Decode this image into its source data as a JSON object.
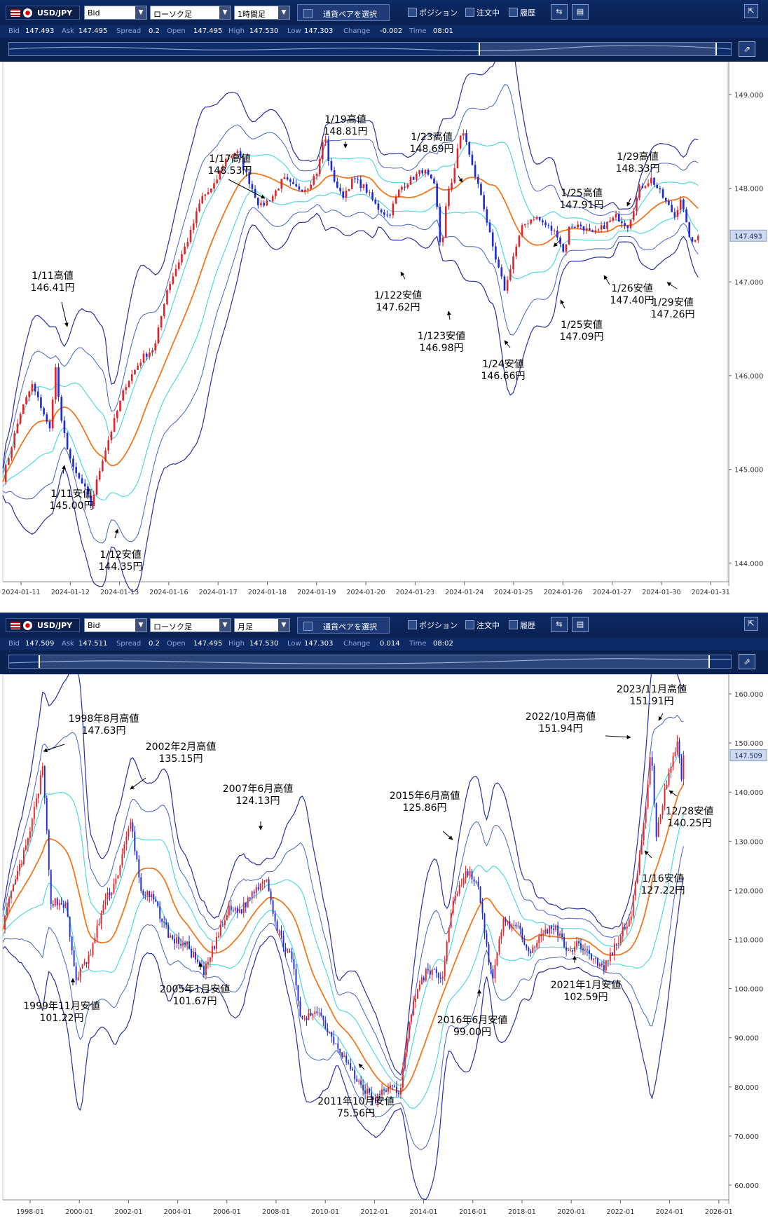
{
  "panels": [
    {
      "id": "hourly",
      "toolbar": {
        "pair": "USD/JPY",
        "price_type": "Bid",
        "chart_type": "ローソク足",
        "timeframe": "1時間足",
        "select_pair": "通貨ペアを選択",
        "position_label": "ポジション",
        "order_label": "注文中",
        "history_label": "履歴"
      },
      "quote": {
        "bid_label": "Bid",
        "bid": "147.493",
        "ask_label": "Ask",
        "ask": "147.495",
        "spread_label": "Spread",
        "spread": "0.2",
        "open_label": "Open",
        "open": "147.495",
        "high_label": "High",
        "high": "147.530",
        "low_label": "Low",
        "low": "147.303",
        "change_label": "Change",
        "change": "-0.002",
        "time_label": "Time",
        "time": "08:01"
      },
      "chart_data": {
        "type": "candlestick",
        "indicators": [
          "moving average (orange)",
          "Bollinger bands ±1σ/±2σ/±3σ (cyan/blue/navy)"
        ],
        "current_price_label": "147.493",
        "yticks": [
          "149.000",
          "148.000",
          "147.000",
          "146.000",
          "145.000",
          "144.000"
        ],
        "yrange": [
          143.8,
          149.35
        ],
        "xticks": [
          "2024-01-11",
          "2024-01-12",
          "2024-01-13",
          "2024-01-16",
          "2024-01-17",
          "2024-01-18",
          "2024-01-19",
          "2024-01-20",
          "2024-01-23",
          "2024-01-24",
          "2024-01-25",
          "2024-01-26",
          "2024-01-27",
          "2024-01-30",
          "2024-01-31"
        ],
        "close_path": [
          [
            0,
            144.9
          ],
          [
            3,
            145.6
          ],
          [
            5,
            145.9
          ],
          [
            7,
            145.6
          ],
          [
            8,
            145.4
          ],
          [
            9,
            146.1
          ],
          [
            10,
            145.5
          ],
          [
            12,
            145.0
          ],
          [
            14,
            144.8
          ],
          [
            15,
            144.6
          ],
          [
            17,
            145.1
          ],
          [
            19,
            145.5
          ],
          [
            21,
            145.9
          ],
          [
            23,
            146.1
          ],
          [
            24,
            146.2
          ],
          [
            26,
            146.3
          ],
          [
            28,
            146.9
          ],
          [
            30,
            147.2
          ],
          [
            32,
            147.5
          ],
          [
            34,
            147.9
          ],
          [
            36,
            148.0
          ],
          [
            38,
            148.3
          ],
          [
            40,
            148.4
          ],
          [
            42,
            148.1
          ],
          [
            44,
            147.8
          ],
          [
            46,
            147.9
          ],
          [
            48,
            148.1
          ],
          [
            50,
            148.0
          ],
          [
            52,
            148.0
          ],
          [
            54,
            148.2
          ],
          [
            55,
            148.6
          ],
          [
            56,
            148.2
          ],
          [
            58,
            147.9
          ],
          [
            60,
            148.1
          ],
          [
            62,
            148.0
          ],
          [
            64,
            147.8
          ],
          [
            66,
            147.7
          ],
          [
            68,
            148.0
          ],
          [
            70,
            148.1
          ],
          [
            72,
            148.2
          ],
          [
            74,
            148.0
          ],
          [
            75,
            147.3
          ],
          [
            76,
            147.9
          ],
          [
            77,
            148.1
          ],
          [
            78,
            148.5
          ],
          [
            79,
            148.6
          ],
          [
            80,
            148.3
          ],
          [
            82,
            147.9
          ],
          [
            84,
            147.3
          ],
          [
            86,
            146.9
          ],
          [
            87,
            147.2
          ],
          [
            89,
            147.6
          ],
          [
            91,
            147.7
          ],
          [
            93,
            147.6
          ],
          [
            95,
            147.5
          ],
          [
            96,
            147.3
          ],
          [
            97,
            147.6
          ],
          [
            99,
            147.6
          ],
          [
            101,
            147.5
          ],
          [
            103,
            147.6
          ],
          [
            105,
            147.7
          ],
          [
            107,
            147.6
          ],
          [
            109,
            148.0
          ],
          [
            111,
            148.1
          ],
          [
            113,
            147.9
          ],
          [
            115,
            147.7
          ],
          [
            116,
            147.9
          ],
          [
            117,
            147.6
          ],
          [
            118,
            147.4
          ],
          [
            119,
            147.49
          ]
        ],
        "annotations": [
          {
            "label": "1/11高値",
            "value": "146.41円"
          },
          {
            "label": "1/11安値",
            "value": "145.00円"
          },
          {
            "label": "1/12安値",
            "value": "144.35円"
          },
          {
            "label": "1/17高値",
            "value": "148.53円"
          },
          {
            "label": "1/19高値",
            "value": "148.81円"
          },
          {
            "label": "1/23高値",
            "value": "148.69円"
          },
          {
            "label": "1/122安値",
            "value": "147.62円"
          },
          {
            "label": "1/123安値",
            "value": "146.98円"
          },
          {
            "label": "1/24安値",
            "value": "146.66円"
          },
          {
            "label": "1/25高値",
            "value": "147.91円"
          },
          {
            "label": "1/25安値",
            "value": "147.09円"
          },
          {
            "label": "1/26安値",
            "value": "147.40円"
          },
          {
            "label": "1/29高値",
            "value": "148.33円"
          },
          {
            "label": "1/29安値",
            "value": "147.26円"
          }
        ]
      }
    },
    {
      "id": "monthly",
      "toolbar": {
        "pair": "USD/JPY",
        "price_type": "Bid",
        "chart_type": "ローソク足",
        "timeframe": "月足",
        "select_pair": "通貨ペアを選択",
        "position_label": "ポジション",
        "order_label": "注文中",
        "history_label": "履歴"
      },
      "quote": {
        "bid_label": "Bid",
        "bid": "147.509",
        "ask_label": "Ask",
        "ask": "147.511",
        "spread_label": "Spread",
        "spread": "0.2",
        "open_label": "Open",
        "open": "147.495",
        "high_label": "High",
        "high": "147.530",
        "low_label": "Low",
        "low": "147.303",
        "change_label": "Change",
        "change": "0.014",
        "time_label": "Time",
        "time": "08:02"
      },
      "chart_data": {
        "type": "candlestick",
        "indicators": [
          "moving average (orange)",
          "Bollinger bands ±1σ/±2σ/±3σ (cyan/blue/navy)"
        ],
        "current_price_label": "147.509",
        "yticks": [
          "160.000",
          "150.000",
          "140.000",
          "130.000",
          "120.000",
          "110.000",
          "100.000",
          "90.000",
          "80.000",
          "70.000",
          "60.000"
        ],
        "yrange": [
          57,
          164
        ],
        "xticks": [
          "1998-01",
          "2000-01",
          "2002-01",
          "2004-01",
          "2006-01",
          "2008-01",
          "2010-01",
          "2012-01",
          "2014-01",
          "2016-01",
          "2018-01",
          "2020-01",
          "2022-01",
          "2024-01",
          "2026-01"
        ],
        "close_path": [
          [
            1997.0,
            113
          ],
          [
            1997.5,
            122
          ],
          [
            1998.0,
            130
          ],
          [
            1998.6,
            145
          ],
          [
            1998.9,
            118
          ],
          [
            1999.5,
            117
          ],
          [
            1999.9,
            102
          ],
          [
            2000.5,
            107
          ],
          [
            2001.0,
            117
          ],
          [
            2001.5,
            122
          ],
          [
            2002.1,
            134
          ],
          [
            2002.5,
            120
          ],
          [
            2003.0,
            118
          ],
          [
            2003.7,
            110
          ],
          [
            2004.3,
            109
          ],
          [
            2005.0,
            103
          ],
          [
            2005.5,
            110
          ],
          [
            2006.0,
            116
          ],
          [
            2006.5,
            116
          ],
          [
            2007.0,
            120
          ],
          [
            2007.5,
            123
          ],
          [
            2007.9,
            112
          ],
          [
            2008.5,
            106
          ],
          [
            2008.9,
            93
          ],
          [
            2009.5,
            96
          ],
          [
            2010.0,
            91
          ],
          [
            2010.5,
            87
          ],
          [
            2011.0,
            82
          ],
          [
            2011.8,
            77
          ],
          [
            2012.3,
            80
          ],
          [
            2012.8,
            79
          ],
          [
            2013.3,
            97
          ],
          [
            2013.9,
            104
          ],
          [
            2014.5,
            102
          ],
          [
            2014.9,
            118
          ],
          [
            2015.5,
            124
          ],
          [
            2015.9,
            121
          ],
          [
            2016.5,
            101
          ],
          [
            2016.9,
            114
          ],
          [
            2017.5,
            112
          ],
          [
            2018.0,
            108
          ],
          [
            2018.9,
            113
          ],
          [
            2019.5,
            108
          ],
          [
            2020.0,
            109
          ],
          [
            2020.9,
            104
          ],
          [
            2021.5,
            110
          ],
          [
            2022.0,
            115
          ],
          [
            2022.5,
            132
          ],
          [
            2022.8,
            149
          ],
          [
            2023.0,
            131
          ],
          [
            2023.5,
            144
          ],
          [
            2023.9,
            151
          ],
          [
            2024.0,
            141
          ],
          [
            2024.1,
            147.5
          ]
        ],
        "annotations": [
          {
            "label": "1998年8月高値",
            "value": "147.63円"
          },
          {
            "label": "1999年11月安値",
            "value": "101.22円"
          },
          {
            "label": "2002年2月高値",
            "value": "135.15円"
          },
          {
            "label": "2005年1月安値",
            "value": "101.67円"
          },
          {
            "label": "2007年6月高値",
            "value": "124.13円"
          },
          {
            "label": "2011年10月安値",
            "value": "75.56円"
          },
          {
            "label": "2015年6月高値",
            "value": "125.86円"
          },
          {
            "label": "2016年6月安値",
            "value": "99.00円"
          },
          {
            "label": "2021年1月安値",
            "value": "102.59円"
          },
          {
            "label": "2022/10月高値",
            "value": "151.94円"
          },
          {
            "label": "2023/11月高値",
            "value": "151.91円"
          },
          {
            "label": "12/28安値",
            "value": "140.25円"
          },
          {
            "label": "1/16安値",
            "value": "127.22円"
          }
        ]
      }
    }
  ]
}
